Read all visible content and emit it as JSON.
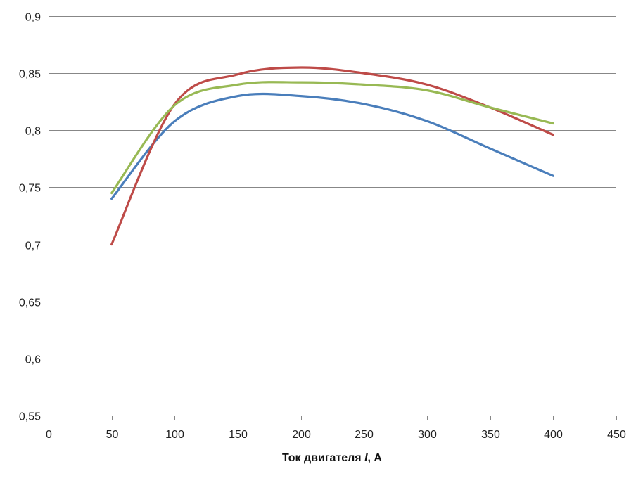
{
  "chart_data": {
    "type": "line",
    "title": "",
    "xlabel": {
      "prefix": "Ток двигателя ",
      "var": "I",
      "suffix": ", А"
    },
    "ylabel": "",
    "xlim": [
      0,
      450
    ],
    "ylim": [
      0.55,
      0.9
    ],
    "x_ticks": [
      0,
      50,
      100,
      150,
      200,
      250,
      300,
      350,
      400,
      450
    ],
    "x_tick_labels": [
      "0",
      "50",
      "100",
      "150",
      "200",
      "250",
      "300",
      "350",
      "400",
      "450"
    ],
    "y_ticks": [
      0.55,
      0.6,
      0.65,
      0.7,
      0.75,
      0.8,
      0.85,
      0.9
    ],
    "y_tick_labels": [
      "0,55",
      "0,6",
      "0,65",
      "0,7",
      "0,75",
      "0,8",
      "0,85",
      "0,9"
    ],
    "grid": "horizontal",
    "legend": "none",
    "smooth": true,
    "series": [
      {
        "color": "#4a7ebb",
        "x": [
          50,
          100,
          150,
          200,
          250,
          300,
          350,
          400
        ],
        "values": [
          0.74,
          0.808,
          0.83,
          0.83,
          0.823,
          0.808,
          0.784,
          0.76
        ]
      },
      {
        "color": "#be4b48",
        "x": [
          50,
          100,
          150,
          200,
          250,
          300,
          350,
          400
        ],
        "values": [
          0.7,
          0.823,
          0.849,
          0.855,
          0.85,
          0.84,
          0.82,
          0.796
        ]
      },
      {
        "color": "#98b954",
        "x": [
          50,
          100,
          150,
          200,
          250,
          300,
          350,
          400
        ],
        "values": [
          0.745,
          0.822,
          0.84,
          0.842,
          0.84,
          0.835,
          0.82,
          0.806
        ]
      }
    ]
  }
}
